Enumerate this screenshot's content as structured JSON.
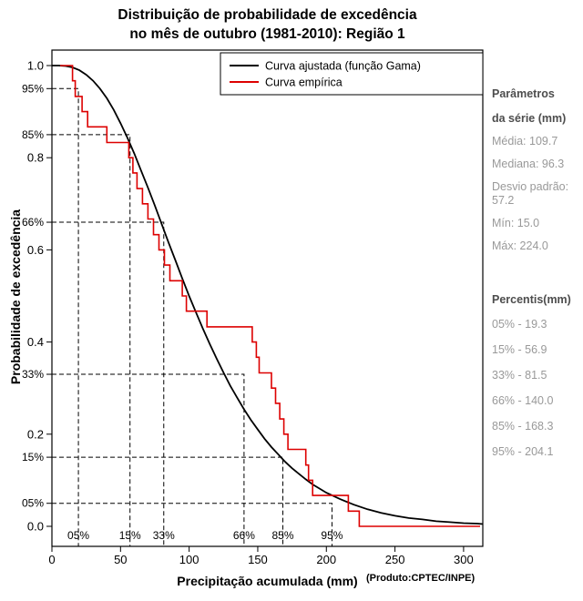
{
  "title": {
    "line1": "Distribuição de probabilidade de excedência",
    "line2": "no mês de outubro (1981-2010): Região 1"
  },
  "x_axis": {
    "label": "Precipitação acumulada (mm)"
  },
  "y_axis": {
    "label": "Probabilidade de excedência"
  },
  "credit": "(Produto:CPTEC/INPE)",
  "side_panel": {
    "params_header": [
      "Parâmetros",
      "da série (mm)"
    ],
    "stats": [
      "Média: 109.7",
      "Mediana: 96.3",
      "Desvio padrão: 57.2",
      "Mín: 15.0",
      "Máx: 224.0"
    ],
    "percentiles_header": "Percentis(mm)",
    "percentiles": [
      "05% - 19.3",
      "15% - 56.9",
      "33% - 81.5",
      "66% - 140.0",
      "85% - 168.3",
      "95% - 204.1"
    ]
  },
  "colors": {
    "fitted": "#000000",
    "empirical": "#dd0000",
    "guide": "#000000",
    "panel_header": "#4d4d4d",
    "panel_value": "#999999"
  },
  "chart_data": {
    "type": "line",
    "title": "Distribuição de probabilidade de excedência no mês de outubro (1981-2010): Região 1",
    "xlabel": "Precipitação acumulada (mm)",
    "ylabel": "Probabilidade de excedência",
    "xlim": [
      0,
      314
    ],
    "ylim": [
      0,
      1
    ],
    "grid": false,
    "legend_position": "top-right-inside",
    "x_ticks": [
      0,
      50,
      100,
      150,
      200,
      250,
      300
    ],
    "y_ticks": [
      {
        "label": "0.0",
        "p": 0.0
      },
      {
        "label": "0.2",
        "p": 0.2
      },
      {
        "label": "0.4",
        "p": 0.4
      },
      {
        "label": "0.6",
        "p": 0.6
      },
      {
        "label": "0.8",
        "p": 0.8
      },
      {
        "label": "1.0",
        "p": 1.0
      }
    ],
    "y_pct_ticks": [
      {
        "label": "95%",
        "p": 0.95
      },
      {
        "label": "85%",
        "p": 0.85
      },
      {
        "label": "66%",
        "p": 0.66
      },
      {
        "label": "33%",
        "p": 0.33
      },
      {
        "label": "15%",
        "p": 0.15
      },
      {
        "label": "05%",
        "p": 0.05
      }
    ],
    "percentile_guides": [
      {
        "bottom_label": "05%",
        "x": 19.3,
        "level": 0.95
      },
      {
        "bottom_label": "15%",
        "x": 56.9,
        "level": 0.85
      },
      {
        "bottom_label": "33%",
        "x": 81.5,
        "level": 0.66
      },
      {
        "bottom_label": "66%",
        "x": 140.0,
        "level": 0.33
      },
      {
        "bottom_label": "85%",
        "x": 168.3,
        "level": 0.15
      },
      {
        "bottom_label": "95%",
        "x": 204.1,
        "level": 0.05
      }
    ],
    "series": [
      {
        "name": "Curva ajustada (função Gama)",
        "color": "#000000",
        "type": "smooth",
        "x": [
          0,
          5,
          10,
          15,
          20,
          25,
          30,
          35,
          40,
          45,
          50,
          55,
          60,
          65,
          70,
          75,
          80,
          85,
          90,
          95,
          100,
          105,
          110,
          115,
          120,
          125,
          130,
          135,
          140,
          145,
          150,
          155,
          160,
          165,
          170,
          175,
          180,
          185,
          190,
          195,
          200,
          210,
          220,
          230,
          240,
          250,
          260,
          270,
          280,
          290,
          300,
          310,
          314
        ],
        "y": [
          1.0,
          1.0,
          0.999,
          0.996,
          0.99,
          0.98,
          0.967,
          0.95,
          0.929,
          0.904,
          0.875,
          0.843,
          0.809,
          0.772,
          0.735,
          0.696,
          0.656,
          0.616,
          0.577,
          0.538,
          0.5,
          0.464,
          0.429,
          0.396,
          0.364,
          0.334,
          0.305,
          0.279,
          0.254,
          0.231,
          0.21,
          0.19,
          0.172,
          0.156,
          0.14,
          0.126,
          0.114,
          0.102,
          0.091,
          0.082,
          0.073,
          0.059,
          0.047,
          0.037,
          0.029,
          0.023,
          0.018,
          0.015,
          0.011,
          0.009,
          0.007,
          0.006,
          0.005
        ]
      },
      {
        "name": "Curva empírica",
        "color": "#dd0000",
        "type": "step",
        "x": [
          6,
          15,
          17,
          22,
          26,
          40,
          56,
          59,
          62,
          66,
          70,
          74,
          78,
          82,
          86,
          95,
          98,
          113,
          146,
          149,
          151,
          160,
          163,
          166,
          169,
          172,
          185,
          187,
          190,
          216,
          224,
          312
        ],
        "y": [
          1.0,
          0.967,
          0.933,
          0.9,
          0.867,
          0.833,
          0.8,
          0.767,
          0.733,
          0.7,
          0.667,
          0.633,
          0.6,
          0.567,
          0.533,
          0.5,
          0.467,
          0.433,
          0.4,
          0.367,
          0.333,
          0.3,
          0.267,
          0.233,
          0.2,
          0.167,
          0.133,
          0.1,
          0.067,
          0.033,
          0.0,
          0.0
        ]
      }
    ]
  }
}
